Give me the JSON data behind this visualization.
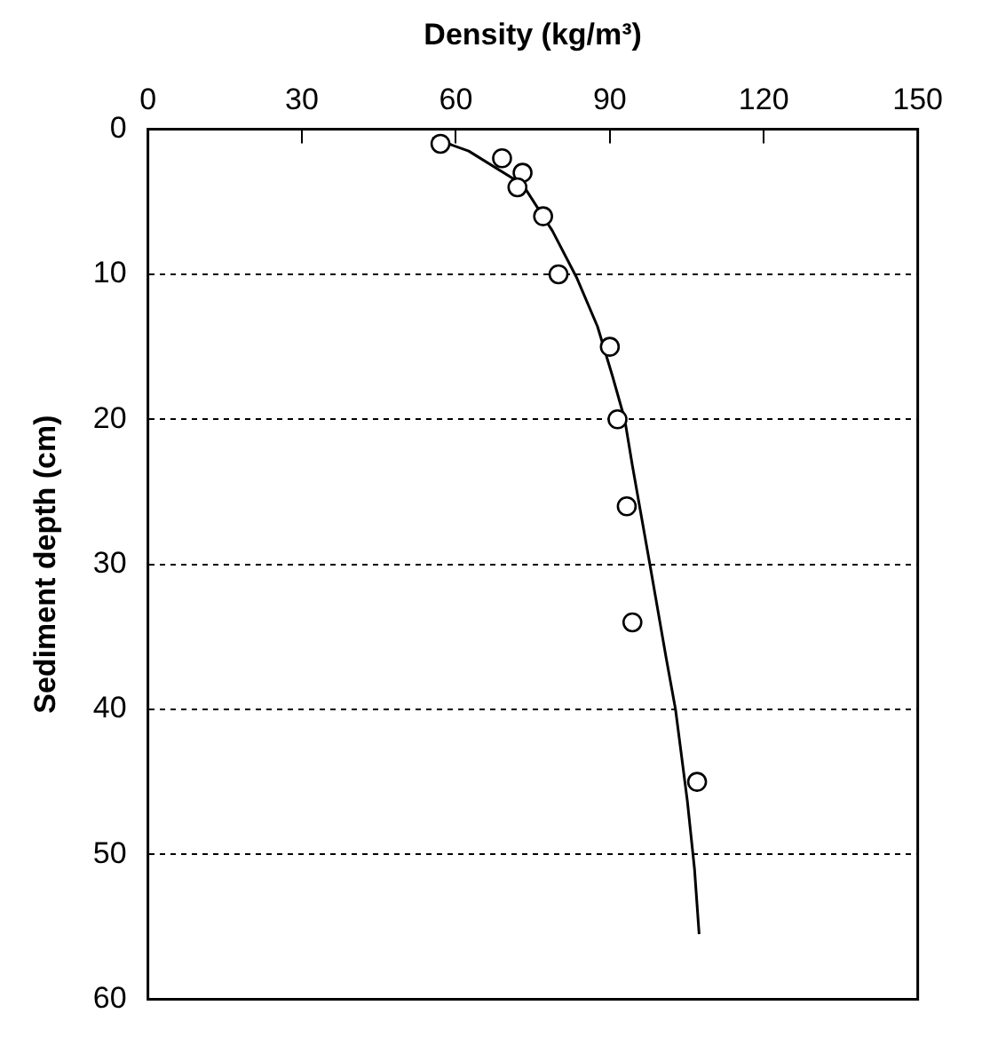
{
  "chart_data": {
    "type": "scatter",
    "xlabel": "Density (kg/m³)",
    "ylabel": "Sediment depth (cm)",
    "xlim": [
      0,
      150
    ],
    "xticks": [
      0,
      30,
      60,
      90,
      120,
      150
    ],
    "ylim": [
      60,
      0
    ],
    "yticks": [
      0,
      10,
      20,
      30,
      40,
      50,
      60
    ],
    "grid": "y",
    "marker": "circle",
    "series": [
      {
        "type": "scatter",
        "color": "#000000",
        "x": [
          57,
          69,
          73,
          72,
          77,
          80,
          90,
          91.5,
          93.3,
          94.4,
          107
        ],
        "values": [
          1,
          2,
          3,
          4,
          6,
          10,
          15,
          20,
          26,
          34,
          45
        ]
      },
      {
        "type": "line",
        "color": "#000000",
        "marker": "none",
        "x": [
          55.4,
          62.5,
          73,
          78.8,
          83.5,
          87.6,
          90.5,
          92.9,
          94.4,
          97.8,
          101,
          102.8,
          105.1,
          106.5,
          107.4
        ],
        "values": [
          0.6,
          1.5,
          3.8,
          7,
          10.2,
          13.6,
          17,
          20,
          23.2,
          30,
          36.5,
          40,
          46.3,
          51,
          55.5
        ]
      }
    ]
  }
}
